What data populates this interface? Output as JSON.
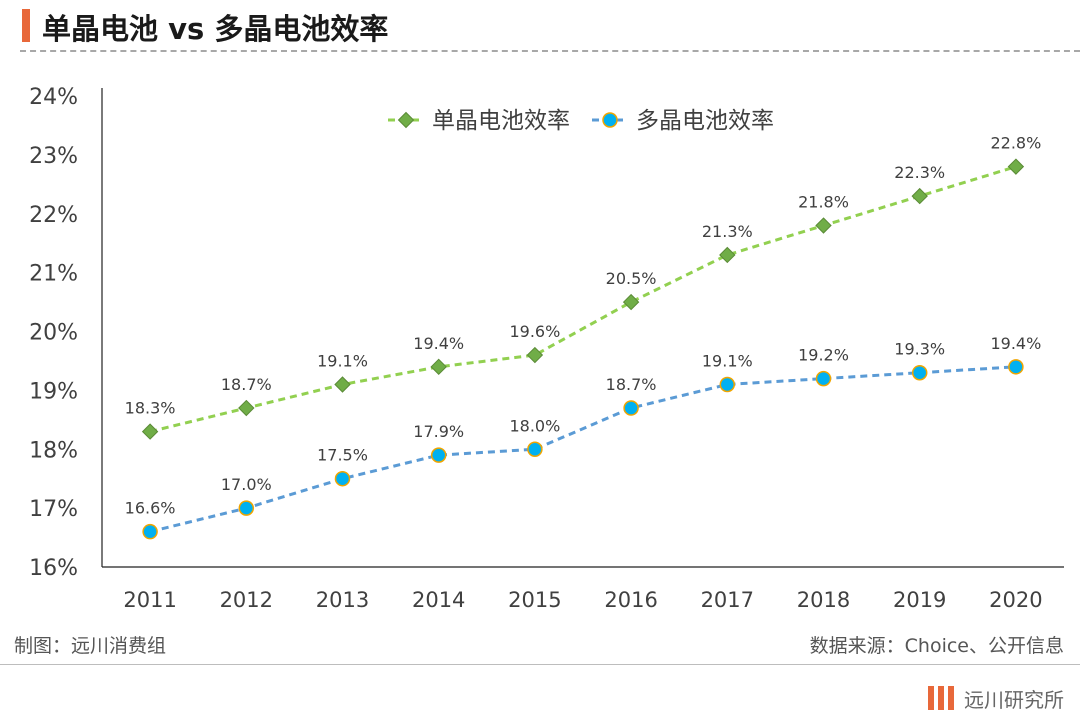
{
  "title": "单晶电池 vs 多晶电池效率",
  "footer": {
    "maker": "制图：远川消费组",
    "source": "数据来源：Choice、公开信息",
    "brand": "远川研究所"
  },
  "colors": {
    "accent": "#e8683a",
    "mono_line": "#92d050",
    "mono_marker": "#70ad47",
    "poly_line": "#5b9bd5",
    "poly_marker": "#00b0f0",
    "poly_marker_edge": "#f0a500"
  },
  "chart_data": {
    "type": "line",
    "title": "单晶电池 vs 多晶电池效率",
    "x": [
      "2011",
      "2012",
      "2013",
      "2014",
      "2015",
      "2016",
      "2017",
      "2018",
      "2019",
      "2020"
    ],
    "series": [
      {
        "name": "单晶电池效率",
        "marker": "diamond",
        "values": [
          18.3,
          18.7,
          19.1,
          19.4,
          19.6,
          20.5,
          21.3,
          21.8,
          22.3,
          22.8
        ]
      },
      {
        "name": "多晶电池效率",
        "marker": "circle",
        "values": [
          16.6,
          17.0,
          17.5,
          17.9,
          18.0,
          18.7,
          19.1,
          19.2,
          19.3,
          19.4
        ]
      }
    ],
    "ylim": [
      16,
      24
    ],
    "yticks": [
      "16%",
      "17%",
      "18%",
      "19%",
      "20%",
      "21%",
      "22%",
      "23%",
      "24%"
    ],
    "value_suffix": "%",
    "legend_position": "top-center",
    "grid": false,
    "line_style": "dashed"
  }
}
